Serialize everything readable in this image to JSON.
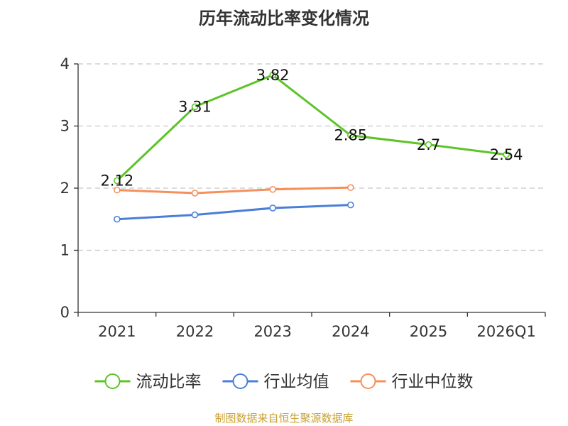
{
  "chart_data": {
    "type": "line",
    "title": "历年流动比率变化情况",
    "categories": [
      "2021",
      "2022",
      "2023",
      "2024",
      "2025",
      "2026Q1"
    ],
    "ylim": [
      0,
      4
    ],
    "yticks": [
      0,
      1,
      2,
      3,
      4
    ],
    "grid": true,
    "legend_position": "bottom",
    "series": [
      {
        "name": "流动比率",
        "color": "#5cc427",
        "show_labels": true,
        "values": [
          2.12,
          3.31,
          3.82,
          2.85,
          2.7,
          2.54
        ],
        "labels": [
          "2.12",
          "3.31",
          "3.82",
          "2.85",
          "2.7",
          "2.54"
        ]
      },
      {
        "name": "行业均值",
        "color": "#4a7fd8",
        "show_labels": false,
        "values": [
          1.5,
          1.57,
          1.68,
          1.73,
          null,
          null
        ]
      },
      {
        "name": "行业中位数",
        "color": "#f5905a",
        "show_labels": false,
        "values": [
          1.97,
          1.92,
          1.98,
          2.01,
          null,
          null
        ]
      }
    ]
  },
  "source": "制图数据来自恒生聚源数据库"
}
